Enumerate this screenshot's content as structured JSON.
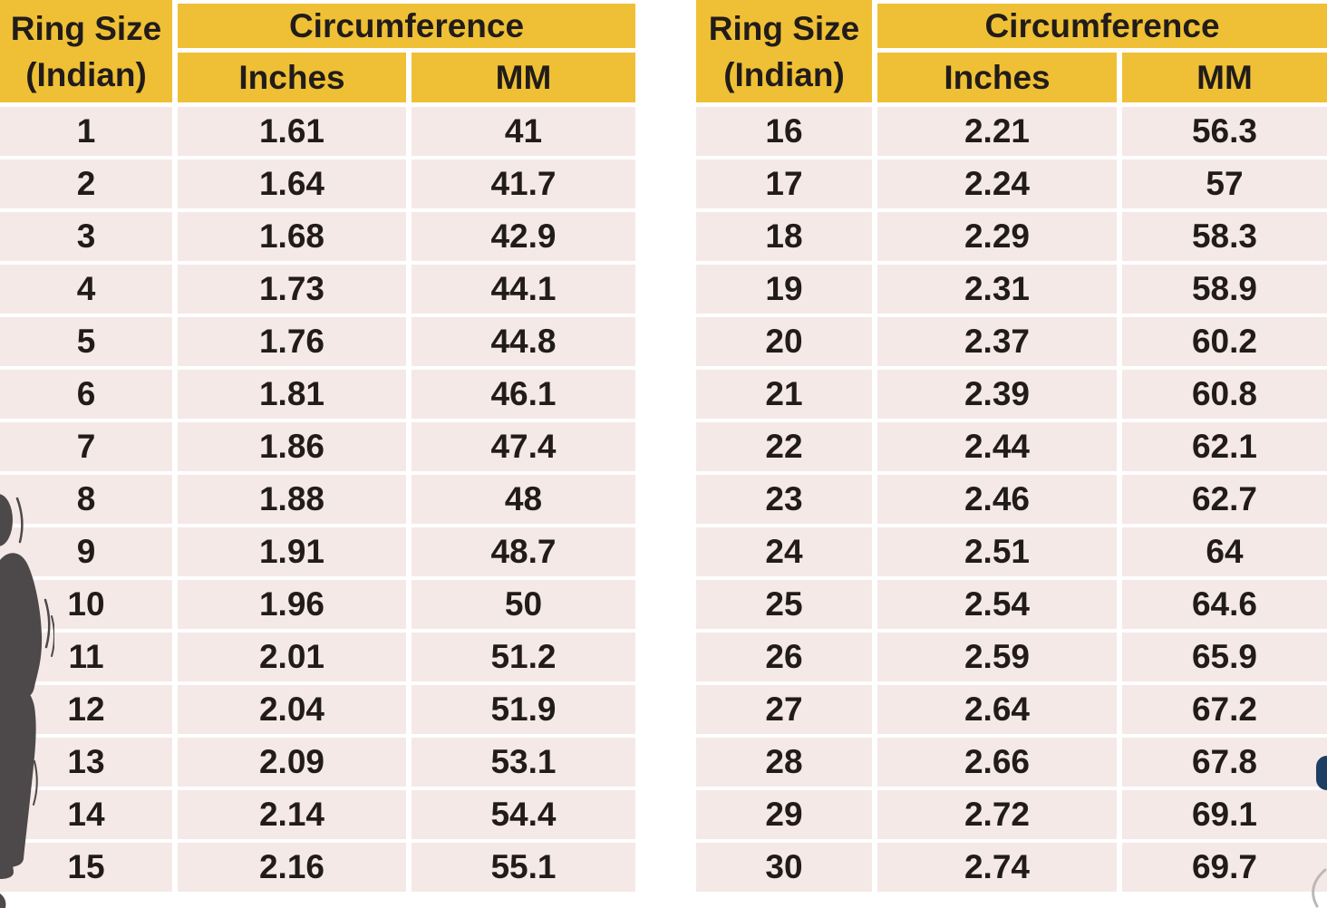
{
  "colors": {
    "header_bg": "#efc035",
    "row_bg": "#f4e9e7",
    "separator": "#ffffff",
    "text": "#211c1a",
    "figure": "#4d4849",
    "hand": "#c08a64",
    "blob": "#1e3f63",
    "edge_mark": "#bdb7b5"
  },
  "tables": [
    {
      "id": "left",
      "header": {
        "col1_line1": "Ring Size",
        "col1_line2": "(Indian)",
        "group": "Circumference",
        "sub_inches": "Inches",
        "sub_mm": "MM"
      },
      "rows": [
        [
          "1",
          "1.61",
          "41"
        ],
        [
          "2",
          "1.64",
          "41.7"
        ],
        [
          "3",
          "1.68",
          "42.9"
        ],
        [
          "4",
          "1.73",
          "44.1"
        ],
        [
          "5",
          "1.76",
          "44.8"
        ],
        [
          "6",
          "1.81",
          "46.1"
        ],
        [
          "7",
          "1.86",
          "47.4"
        ],
        [
          "8",
          "1.88",
          "48"
        ],
        [
          "9",
          "1.91",
          "48.7"
        ],
        [
          "10",
          "1.96",
          "50"
        ],
        [
          "11",
          "2.01",
          "51.2"
        ],
        [
          "12",
          "2.04",
          "51.9"
        ],
        [
          "13",
          "2.09",
          "53.1"
        ],
        [
          "14",
          "2.14",
          "54.4"
        ],
        [
          "15",
          "2.16",
          "55.1"
        ]
      ]
    },
    {
      "id": "right",
      "header": {
        "col1_line1": "Ring Size",
        "col1_line2": "(Indian)",
        "group": "Circumference",
        "sub_inches": "Inches",
        "sub_mm": "MM"
      },
      "rows": [
        [
          "16",
          "2.21",
          "56.3"
        ],
        [
          "17",
          "2.24",
          "57"
        ],
        [
          "18",
          "2.29",
          "58.3"
        ],
        [
          "19",
          "2.31",
          "58.9"
        ],
        [
          "20",
          "2.37",
          "60.2"
        ],
        [
          "21",
          "2.39",
          "60.8"
        ],
        [
          "22",
          "2.44",
          "62.1"
        ],
        [
          "23",
          "2.46",
          "62.7"
        ],
        [
          "24",
          "2.51",
          "64"
        ],
        [
          "25",
          "2.54",
          "64.6"
        ],
        [
          "26",
          "2.59",
          "65.9"
        ],
        [
          "27",
          "2.64",
          "67.2"
        ],
        [
          "28",
          "2.66",
          "67.8"
        ],
        [
          "29",
          "2.72",
          "69.1"
        ],
        [
          "30",
          "2.74",
          "69.7"
        ]
      ]
    }
  ]
}
